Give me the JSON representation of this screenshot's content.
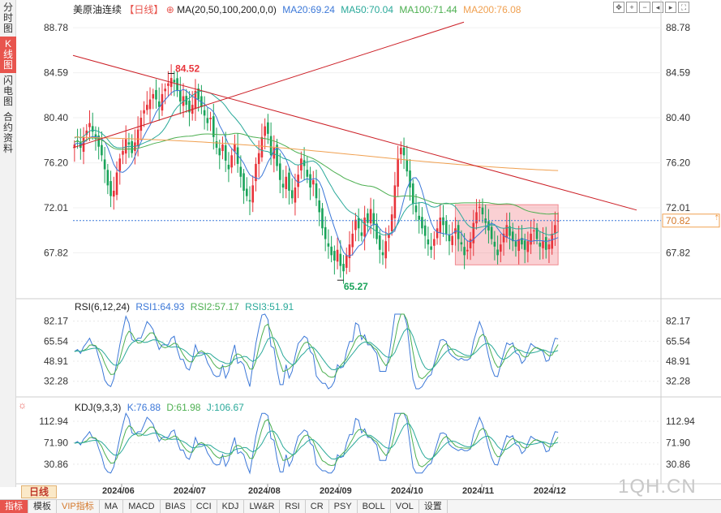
{
  "sidebar": {
    "tabs": [
      {
        "label": "分时图",
        "active": false
      },
      {
        "label": "K线图",
        "active": true
      },
      {
        "label": "闪电图",
        "active": false
      },
      {
        "label": "合约资料",
        "active": false
      }
    ]
  },
  "header": {
    "symbol": "美原油连续",
    "period_tag": "【日线】",
    "ma_label": "MA(20,50,100,200,0,0)",
    "ma20": "MA20:69.24",
    "ma50": "MA50:70.04",
    "ma100": "MA100:71.44",
    "ma200": "MA200:76.08"
  },
  "toolbar": {
    "icons": [
      "fit-icon",
      "zoom-in-icon",
      "zoom-out-icon",
      "pan-left-icon",
      "pan-right-icon",
      "fullscreen-icon"
    ]
  },
  "colors": {
    "up": "#e8333a",
    "down": "#1aa35a",
    "ma20": "#3c78d8",
    "ma50": "#2aa99a",
    "ma100": "#4caf50",
    "ma200": "#f0a050",
    "trend": "#cc1f26",
    "last": "#3c78d8"
  },
  "price_axis": {
    "ticks": [
      "88.78",
      "84.59",
      "80.40",
      "76.20",
      "72.01",
      "67.82"
    ]
  },
  "last_price": "70.82",
  "annotations": {
    "high": "84.52",
    "low": "65.27"
  },
  "rsi": {
    "title": "RSI(6,12,24)",
    "rsi1": "RSI1:64.93",
    "rsi2": "RSI2:57.17",
    "rsi3": "RSI3:51.91",
    "ticks": [
      "82.17",
      "65.54",
      "48.91",
      "32.28"
    ]
  },
  "kdj": {
    "title": "KDJ(9,3,3)",
    "k": "K:76.88",
    "d": "D:61.98",
    "j": "J:106.67",
    "ticks": [
      "112.94",
      "71.90",
      "30.86"
    ]
  },
  "date_axis": {
    "labels": [
      "2024/06",
      "2024/07",
      "2024/08",
      "2024/09",
      "2024/10",
      "2024/11",
      "2024/12"
    ]
  },
  "watermark": "1QH.CN",
  "period_button": "日线",
  "bottom_tabs": [
    {
      "label": "指标",
      "active": true
    },
    {
      "label": "模板",
      "active": false
    },
    {
      "label": "VIP指标",
      "active": false,
      "vip": true
    },
    {
      "label": "MA",
      "active": false
    },
    {
      "label": "MACD",
      "active": false
    },
    {
      "label": "BIAS",
      "active": false
    },
    {
      "label": "CCI",
      "active": false
    },
    {
      "label": "KDJ",
      "active": false
    },
    {
      "label": "LW&R",
      "active": false
    },
    {
      "label": "RSI",
      "active": false
    },
    {
      "label": "CR",
      "active": false
    },
    {
      "label": "PSY",
      "active": false
    },
    {
      "label": "BOLL",
      "active": false
    },
    {
      "label": "VOL",
      "active": false
    },
    {
      "label": "设置",
      "active": false
    }
  ],
  "chart_data": {
    "type": "candlestick",
    "ylim": [
      64,
      90
    ],
    "closes": [
      77.9,
      78.2,
      77.6,
      78.6,
      79.2,
      79.9,
      79.1,
      78.4,
      77.7,
      76.9,
      75.6,
      74.1,
      73.1,
      73.6,
      75.3,
      76.6,
      77.3,
      78.4,
      77.9,
      77.1,
      78.1,
      79.3,
      80.4,
      81.1,
      81.6,
      82.1,
      82.6,
      82.1,
      81.4,
      82.6,
      83.1,
      83.6,
      84.1,
      83.7,
      82.9,
      81.9,
      82.4,
      81.6,
      80.9,
      81.6,
      82.9,
      82.1,
      81.4,
      80.6,
      79.9,
      80.4,
      78.6,
      77.6,
      76.9,
      77.9,
      76.4,
      75.6,
      76.9,
      77.9,
      76.1,
      74.9,
      73.6,
      73.1,
      72.6,
      74.1,
      76.1,
      77.1,
      78.6,
      79.6,
      78.9,
      76.9,
      77.6,
      75.9,
      74.6,
      73.9,
      74.9,
      73.6,
      72.9,
      73.9,
      75.1,
      76.6,
      75.9,
      74.9,
      73.9,
      74.6,
      72.9,
      71.6,
      70.1,
      69.1,
      68.4,
      67.6,
      67.1,
      68.1,
      66.6,
      66.1,
      67.6,
      68.6,
      69.6,
      70.9,
      70.1,
      69.4,
      71.1,
      70.6,
      71.9,
      70.4,
      69.1,
      68.1,
      67.6,
      68.9,
      69.6,
      71.4,
      74.1,
      76.6,
      77.6,
      76.9,
      75.4,
      73.9,
      72.4,
      71.6,
      70.9,
      70.1,
      69.4,
      68.6,
      68.1,
      69.1,
      70.1,
      71.1,
      70.4,
      69.6,
      68.9,
      69.4,
      70.1,
      69.1,
      68.6,
      67.6,
      68.1,
      69.1,
      70.6,
      71.6,
      72.1,
      71.4,
      70.6,
      69.9,
      69.1,
      68.4,
      67.6,
      68.6,
      69.6,
      70.4,
      69.4,
      68.9,
      68.4,
      69.1,
      68.6,
      68.1,
      68.9,
      69.6,
      69.9,
      69.1,
      68.4,
      68.9,
      68.1,
      68.6,
      69.6,
      70.4,
      70.8
    ],
    "high": {
      "value": 84.52,
      "label": "84.52"
    },
    "low": {
      "value": 65.27,
      "label": "65.27"
    },
    "ma_values": {
      "MA20": 69.24,
      "MA50": 70.04,
      "MA100": 71.44,
      "MA200": 76.08
    },
    "x_labels": [
      "2024/06",
      "2024/07",
      "2024/08",
      "2024/09",
      "2024/10",
      "2024/11",
      "2024/12"
    ]
  }
}
